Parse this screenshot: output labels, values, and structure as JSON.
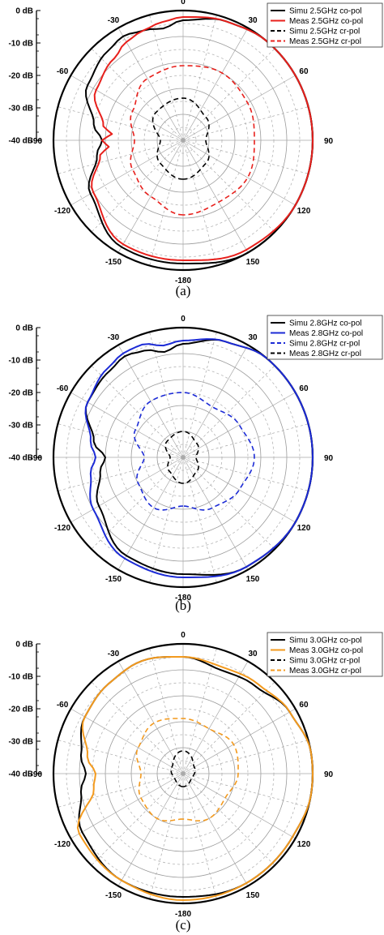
{
  "chart_data": [
    {
      "type": "polar",
      "caption": "(a)",
      "r_ticks": [
        "0 dB",
        "-10 dB",
        "-20 dB",
        "-30 dB",
        "-40 dB"
      ],
      "rlim": [
        -40,
        0
      ],
      "angle_labels": [
        "0",
        "30",
        "60",
        "90",
        "120",
        "150",
        "-180",
        "-150",
        "-120",
        "-90",
        "-60",
        "-30"
      ],
      "grid": true,
      "legend_position": "top-right",
      "series": [
        {
          "name": "Simu 2.5GHz co-pol",
          "color": "#000000",
          "dash": "solid",
          "angles": [
            -180,
            -150,
            -120,
            -100,
            -90,
            -80,
            -60,
            -40,
            -30,
            -20,
            -10,
            0,
            20,
            40,
            60,
            80,
            90,
            100,
            120,
            150,
            180
          ],
          "values": [
            -2,
            -2,
            -7,
            -13,
            -15,
            -12,
            -6,
            -4,
            -3,
            -4,
            -5,
            -3,
            -1,
            0,
            0,
            0,
            0,
            0,
            0,
            0,
            -2
          ]
        },
        {
          "name": "Meas 2.5GHz co-pol",
          "color": "#e8201c",
          "dash": "solid",
          "angles": [
            -180,
            -150,
            -120,
            -100,
            -95,
            -90,
            -85,
            -80,
            -60,
            -40,
            -30,
            -20,
            -10,
            0,
            20,
            40,
            60,
            80,
            90,
            100,
            120,
            150,
            180
          ],
          "values": [
            -3,
            -3,
            -8,
            -14,
            -17,
            -15,
            -18,
            -15,
            -9,
            -7,
            -5,
            -4,
            -3,
            -2,
            -1,
            0,
            0,
            0,
            0,
            0,
            0,
            -1,
            -3
          ]
        },
        {
          "name": "Simu 2.5GHz cr-pol",
          "color": "#000000",
          "dash": "dash",
          "angles": [
            -180,
            -135,
            -90,
            -45,
            0,
            45,
            90,
            135,
            180
          ],
          "values": [
            -28,
            -30,
            -33,
            -28,
            -27,
            -30,
            -33,
            -30,
            -28
          ]
        },
        {
          "name": "Meas 2.5GHz cr-pol",
          "color": "#e8201c",
          "dash": "dash",
          "angles": [
            -180,
            -150,
            -120,
            -90,
            -60,
            -30,
            0,
            30,
            60,
            90,
            120,
            150,
            180
          ],
          "values": [
            -17,
            -20,
            -22,
            -25,
            -22,
            -18,
            -17,
            -16,
            -17,
            -18,
            -17,
            -18,
            -17
          ]
        }
      ]
    },
    {
      "type": "polar",
      "caption": "(b)",
      "r_ticks": [
        "0 dB",
        "-10 dB",
        "-20 dB",
        "-30 dB",
        "-40 dB"
      ],
      "rlim": [
        -40,
        0
      ],
      "angle_labels": [
        "0",
        "30",
        "60",
        "90",
        "120",
        "150",
        "-180",
        "-150",
        "-120",
        "-90",
        "-60",
        "-30"
      ],
      "grid": true,
      "legend_position": "top-right",
      "series": [
        {
          "name": "Simu 2.8GHz co-pol",
          "color": "#000000",
          "dash": "solid",
          "angles": [
            -180,
            -150,
            -120,
            -100,
            -90,
            -80,
            -60,
            -40,
            -30,
            -20,
            -10,
            0,
            20,
            40,
            60,
            80,
            90,
            100,
            120,
            150,
            180
          ],
          "values": [
            -4,
            -5,
            -10,
            -14,
            -16,
            -12,
            -6,
            -5,
            -4,
            -5,
            -7,
            -5,
            -2,
            0,
            0,
            0,
            0,
            0,
            0,
            -1,
            -4
          ]
        },
        {
          "name": "Meas 2.8GHz co-pol",
          "color": "#1c2bd6",
          "dash": "solid",
          "angles": [
            -180,
            -150,
            -120,
            -100,
            -90,
            -80,
            -60,
            -40,
            -30,
            -20,
            -10,
            0,
            20,
            40,
            60,
            80,
            90,
            100,
            120,
            150,
            180
          ],
          "values": [
            -3,
            -4,
            -8,
            -11,
            -13,
            -11,
            -6,
            -4,
            -3,
            -3,
            -5,
            -4,
            -2,
            0,
            0,
            0,
            0,
            0,
            0,
            -1,
            -3
          ]
        },
        {
          "name": "Simu 2.8GHz cr-pol",
          "color": "#1c2bd6",
          "dash": "dash",
          "angles": [
            -180,
            -150,
            -120,
            -90,
            -60,
            -30,
            0,
            30,
            60,
            90,
            120,
            150,
            180
          ],
          "values": [
            -25,
            -22,
            -24,
            -28,
            -23,
            -20,
            -20,
            -22,
            -20,
            -18,
            -20,
            -22,
            -25
          ]
        },
        {
          "name": "Meas 2.8GHz cr-pol",
          "color": "#000000",
          "dash": "dash",
          "angles": [
            -180,
            -135,
            -90,
            -45,
            0,
            45,
            90,
            135,
            180
          ],
          "values": [
            -32,
            -34,
            -36,
            -33,
            -32,
            -34,
            -36,
            -34,
            -32
          ]
        }
      ]
    },
    {
      "type": "polar",
      "caption": "(c)",
      "r_ticks": [
        "0 dB",
        "-10 dB",
        "-20 dB",
        "-30 dB",
        "-40 dB"
      ],
      "rlim": [
        -40,
        0
      ],
      "angle_labels": [
        "0",
        "30",
        "60",
        "90",
        "120",
        "150",
        "-180",
        "-150",
        "-120",
        "-90",
        "-60",
        "-30"
      ],
      "grid": true,
      "legend_position": "top-right",
      "series": [
        {
          "name": "Simu 3.0GHz co-pol",
          "color": "#000000",
          "dash": "solid",
          "angles": [
            -180,
            -150,
            -120,
            -100,
            -90,
            -80,
            -60,
            -40,
            -20,
            0,
            20,
            40,
            60,
            80,
            90,
            100,
            120,
            150,
            180
          ],
          "values": [
            -2,
            -2,
            -4,
            -8,
            -10,
            -8,
            -5,
            -4,
            -3,
            -4,
            -6,
            -5,
            -2,
            0,
            0,
            0,
            -1,
            -1,
            -2
          ]
        },
        {
          "name": "Meas 3.0GHz co-pol",
          "color": "#f39a1e",
          "dash": "solid",
          "angles": [
            -180,
            -150,
            -120,
            -100,
            -90,
            -80,
            -60,
            -40,
            -20,
            0,
            20,
            40,
            60,
            80,
            90,
            100,
            120,
            150,
            180
          ],
          "values": [
            -1,
            -2,
            -3,
            -12,
            -13,
            -10,
            -5,
            -4,
            -3,
            -4,
            -5,
            -4,
            -2,
            0,
            0,
            0,
            -1,
            -1,
            -1
          ]
        },
        {
          "name": "Simu 3.0GHz cr-pol",
          "color": "#000000",
          "dash": "dash",
          "angles": [
            -180,
            -120,
            -60,
            0,
            60,
            120,
            180
          ],
          "values": [
            -36,
            -37,
            -36,
            -33,
            -36,
            -37,
            -36
          ]
        },
        {
          "name": "Meas 3.0GHz cr-pol",
          "color": "#f39a1e",
          "dash": "dash",
          "angles": [
            -180,
            -150,
            -120,
            -90,
            -60,
            -30,
            0,
            30,
            60,
            90,
            120,
            150,
            180
          ],
          "values": [
            -26,
            -24,
            -25,
            -27,
            -24,
            -22,
            -23,
            -24,
            -22,
            -23,
            -25,
            -24,
            -26
          ]
        }
      ]
    }
  ]
}
